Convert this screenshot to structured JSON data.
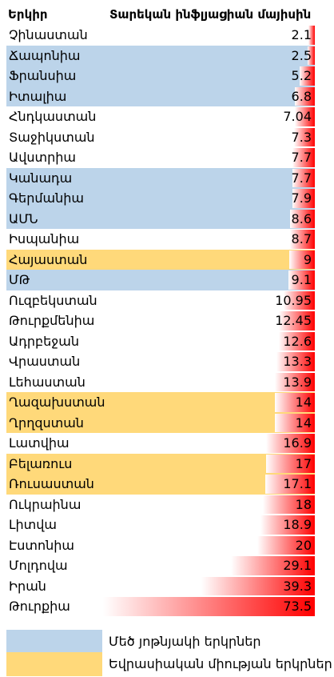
{
  "title": "",
  "header": {
    "country_label": "Երկիր",
    "value_label": "Տարեկան ինֆլյացիան մայիսին"
  },
  "colors": {
    "blue_group": "#bcd4ea",
    "eaeu_group": "#ffd97a",
    "bar_strong": "#ff0000",
    "bar_fade": "#ffffff"
  },
  "legend": [
    {
      "group": "blue",
      "label": "Մեծ յոթնյակի երկրներ"
    },
    {
      "group": "eaeu",
      "label": "Եվրասիական միության երկրներ"
    }
  ],
  "chart_data": {
    "type": "bar",
    "orientation": "horizontal",
    "xlabel": "",
    "ylabel": "",
    "xlim": [
      0,
      73.5
    ],
    "grid": false,
    "legend_position": "bottom",
    "categories": [
      "Չինաստան",
      "Ճապոնիա",
      "Ֆրանսիա",
      "Իտալիա",
      "Հնդկաստան",
      "Տաջիկստան",
      "Ավստրիա",
      "Կանադա",
      "Գերմանիա",
      "ԱՄՆ",
      "Իսպանիա",
      "Հայաստան",
      "ՄԹ",
      "Ուզբեկստան",
      "Թուրքմենիա",
      "Ադրբեջան",
      "Վրաստան",
      "Լեհաստան",
      "Ղազախստան",
      "Ղրղզստան",
      "Լատվիա",
      "Բելառուս",
      "Ռուսաստան",
      "Ուկրաինա",
      "Լիտվա",
      "Էստոնիա",
      "Մոլդովա",
      "Իրան",
      "Թուրքիա"
    ],
    "value_labels": [
      "2.1",
      "2.5",
      "5.2",
      "6.8",
      "7.04",
      "7.3",
      "7.7",
      "7.7",
      "7.9",
      "8.6",
      "8.7",
      "9",
      "9.1",
      "10.95",
      "12.45",
      "12.6",
      "13.3",
      "13.9",
      "14",
      "14",
      "16.9",
      "17",
      "17.1",
      "18",
      "18.9",
      "20",
      "29.1",
      "39.3",
      "73.5"
    ],
    "values": [
      2.1,
      2.5,
      5.2,
      6.8,
      7.04,
      7.3,
      7.7,
      7.7,
      7.9,
      8.6,
      8.7,
      9,
      9.1,
      10.95,
      12.45,
      12.6,
      13.3,
      13.9,
      14,
      14,
      16.9,
      17,
      17.1,
      18,
      18.9,
      20,
      29.1,
      39.3,
      73.5
    ],
    "groups": [
      "none",
      "blue",
      "blue",
      "blue",
      "none",
      "none",
      "none",
      "blue",
      "blue",
      "blue",
      "none",
      "eaeu",
      "blue",
      "none",
      "none",
      "none",
      "none",
      "none",
      "eaeu",
      "eaeu",
      "none",
      "eaeu",
      "eaeu",
      "none",
      "none",
      "none",
      "none",
      "none",
      "none"
    ]
  }
}
